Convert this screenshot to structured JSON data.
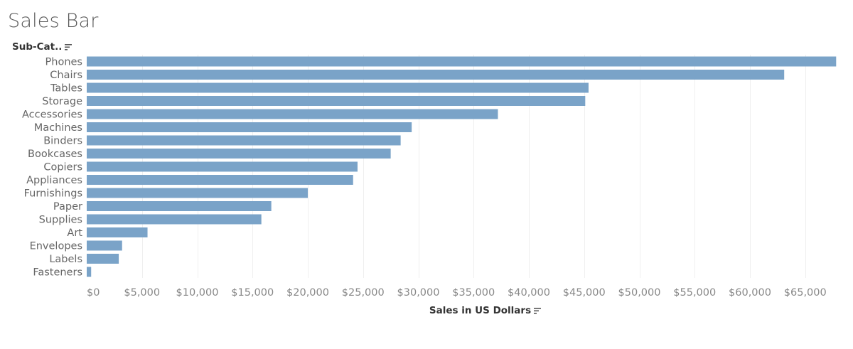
{
  "chart_data": {
    "type": "bar",
    "orientation": "horizontal",
    "title": "Sales Bar",
    "row_header": "Sub-Cat..",
    "xlabel": "Sales in US Dollars",
    "categories": [
      "Phones",
      "Chairs",
      "Tables",
      "Storage",
      "Accessories",
      "Machines",
      "Binders",
      "Bookcases",
      "Copiers",
      "Appliances",
      "Furnishings",
      "Paper",
      "Supplies",
      "Art",
      "Envelopes",
      "Labels",
      "Fasteners"
    ],
    "values": [
      67800,
      63100,
      45400,
      45100,
      37200,
      29400,
      28400,
      27500,
      24500,
      24100,
      20000,
      16700,
      15800,
      5500,
      3200,
      2900,
      400
    ],
    "xlim": [
      0,
      68000
    ],
    "xticks": [
      0,
      5000,
      10000,
      15000,
      20000,
      25000,
      30000,
      35000,
      40000,
      45000,
      50000,
      55000,
      60000,
      65000
    ],
    "xtick_labels": [
      "$0",
      "$5,000",
      "$10,000",
      "$15,000",
      "$20,000",
      "$25,000",
      "$30,000",
      "$35,000",
      "$40,000",
      "$45,000",
      "$50,000",
      "$55,000",
      "$60,000",
      "$65,000"
    ],
    "bar_color": "#7aa3c8",
    "grid": true,
    "legend": "none"
  },
  "icons": {
    "row_sort": "sort-descending-icon",
    "x_sort": "sort-descending-icon"
  }
}
